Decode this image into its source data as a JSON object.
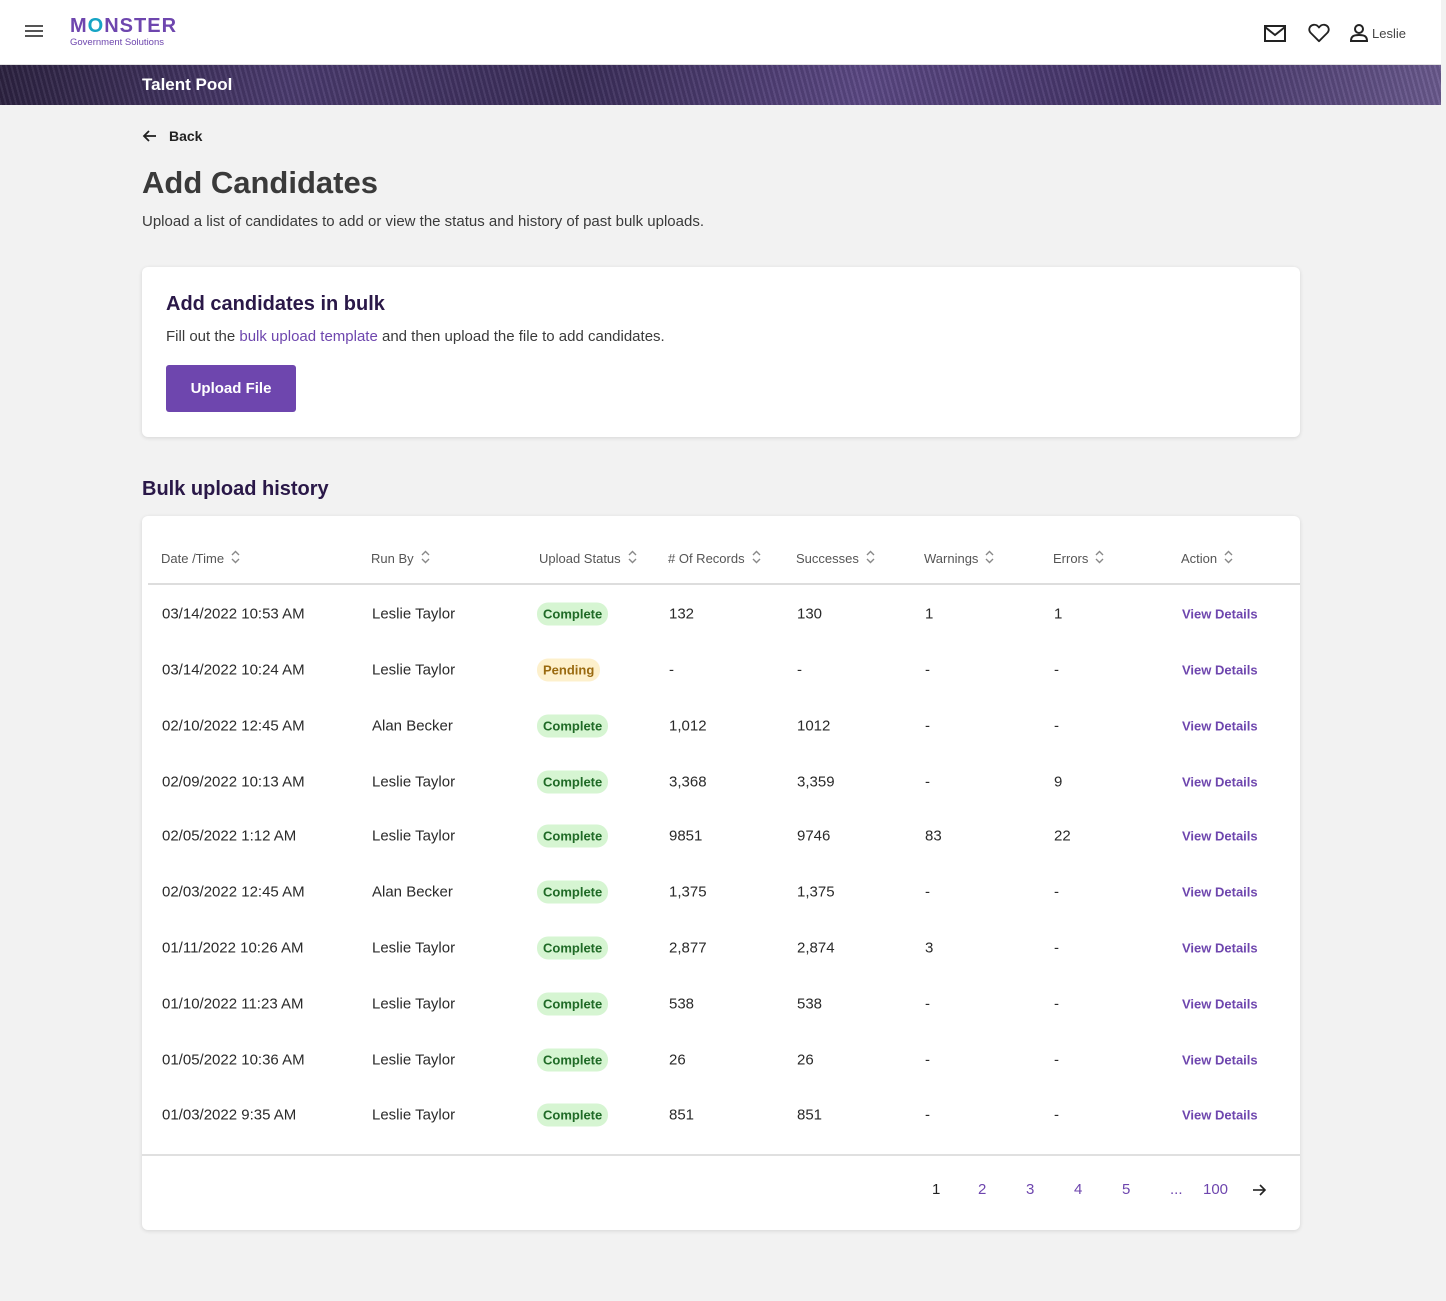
{
  "header": {
    "logo_main_a": "M",
    "logo_main_o": "O",
    "logo_main_b": "NSTER",
    "logo_sub": "Government Solutions",
    "user_name": "Leslie"
  },
  "banner": {
    "title": "Talent Pool"
  },
  "page": {
    "back_label": "Back",
    "title": "Add Candidates",
    "description": "Upload a list of candidates to add or view the status and history of past bulk uploads."
  },
  "bulk_card": {
    "title": "Add candidates in bulk",
    "desc_before": "Fill out the ",
    "link_text": "bulk upload template",
    "desc_after": " and then upload the file to add candidates.",
    "upload_button": "Upload File"
  },
  "history": {
    "title": "Bulk upload history",
    "columns": [
      "Date /Time",
      "Run By",
      "Upload Status",
      "# Of Records",
      "Successes",
      "Warnings",
      "Errors",
      "Action"
    ],
    "rows": [
      {
        "date": "03/14/2022 10:53 AM",
        "run_by": "Leslie Taylor",
        "status": "Complete",
        "records": "132",
        "successes": "130",
        "warnings": "1",
        "errors": "1",
        "action": "View Details"
      },
      {
        "date": "03/14/2022 10:24 AM",
        "run_by": "Leslie Taylor",
        "status": "Pending",
        "records": "-",
        "successes": "-",
        "warnings": "-",
        "errors": "-",
        "action": "View Details"
      },
      {
        "date": "02/10/2022 12:45 AM",
        "run_by": "Alan Becker",
        "status": "Complete",
        "records": "1,012",
        "successes": "1012",
        "warnings": "-",
        "errors": "-",
        "action": "View Details"
      },
      {
        "date": "02/09/2022 10:13 AM",
        "run_by": "Leslie Taylor",
        "status": "Complete",
        "records": "3,368",
        "successes": "3,359",
        "warnings": "-",
        "errors": "9",
        "action": "View Details"
      },
      {
        "date": "02/05/2022 1:12 AM",
        "run_by": "Leslie Taylor",
        "status": "Complete",
        "records": "9851",
        "successes": "9746",
        "warnings": "83",
        "errors": "22",
        "action": "View Details"
      },
      {
        "date": "02/03/2022 12:45 AM",
        "run_by": "Alan Becker",
        "status": "Complete",
        "records": "1,375",
        "successes": "1,375",
        "warnings": "-",
        "errors": "-",
        "action": "View Details"
      },
      {
        "date": "01/11/2022 10:26 AM",
        "run_by": "Leslie Taylor",
        "status": "Complete",
        "records": "2,877",
        "successes": "2,874",
        "warnings": "3",
        "errors": "-",
        "action": "View Details"
      },
      {
        "date": "01/10/2022 11:23 AM",
        "run_by": "Leslie Taylor",
        "status": "Complete",
        "records": "538",
        "successes": "538",
        "warnings": "-",
        "errors": "-",
        "action": "View Details"
      },
      {
        "date": "01/05/2022 10:36 AM",
        "run_by": "Leslie Taylor",
        "status": "Complete",
        "records": "26",
        "successes": "26",
        "warnings": "-",
        "errors": "-",
        "action": "View Details"
      },
      {
        "date": "01/03/2022 9:35 AM",
        "run_by": "Leslie Taylor",
        "status": "Complete",
        "records": "851",
        "successes": "851",
        "warnings": "-",
        "errors": "-",
        "action": "View Details"
      }
    ]
  },
  "pagination": {
    "current": "1",
    "pages": [
      "1",
      "2",
      "3",
      "4",
      "5",
      "...",
      "100"
    ],
    "next_icon": "arrow-right-icon"
  },
  "colors": {
    "brand_purple": "#6e46ae",
    "complete_bg": "#d6f5d2",
    "pending_bg": "#fdf0cc"
  }
}
